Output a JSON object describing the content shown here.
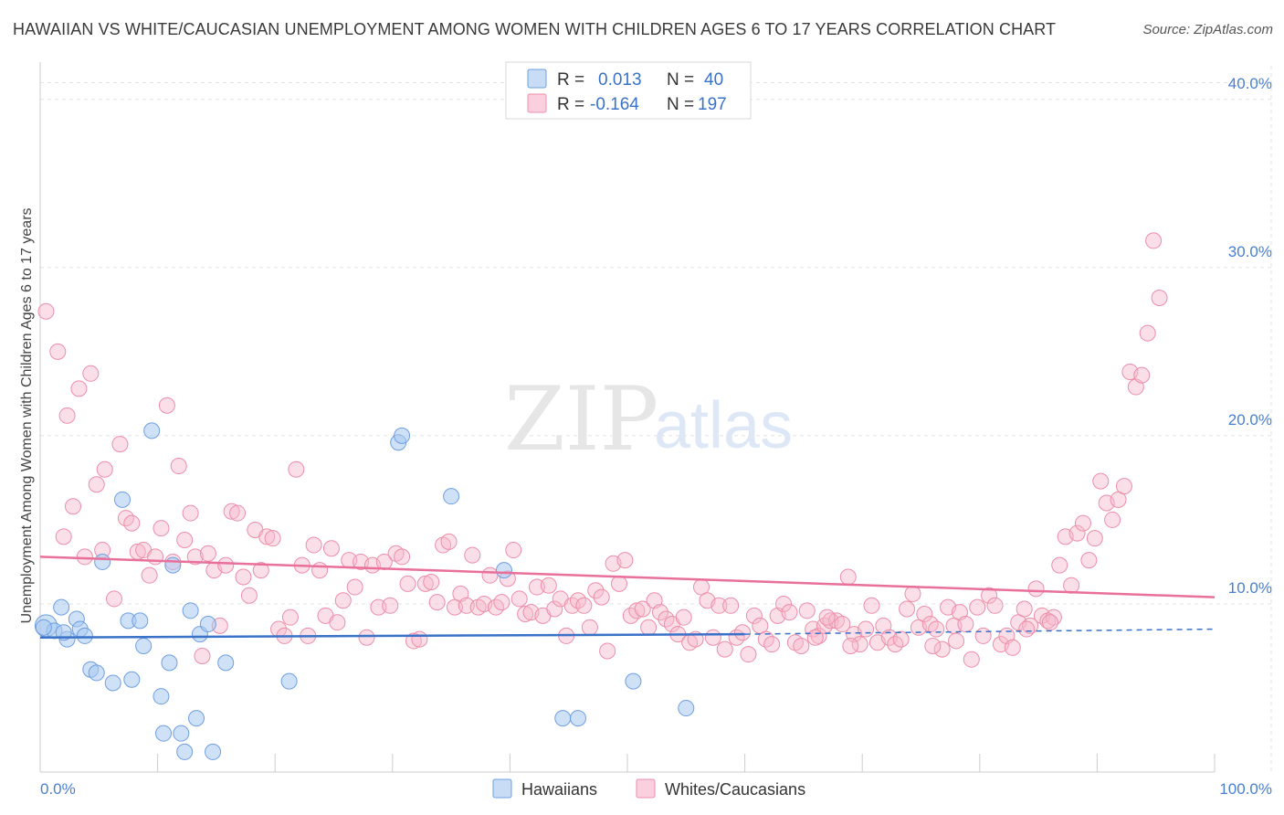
{
  "title": "HAWAIIAN VS WHITE/CAUCASIAN UNEMPLOYMENT AMONG WOMEN WITH CHILDREN AGES 6 TO 17 YEARS CORRELATION CHART",
  "source": "Source: ZipAtlas.com",
  "watermark": {
    "zip": "ZIP",
    "atlas": "atlas"
  },
  "legend_top": {
    "r_label": "R =",
    "n_label": "N =",
    "rows": [
      {
        "r": "0.013",
        "n": "40",
        "color": "#a8c8f0"
      },
      {
        "r": "-0.164",
        "n": "197",
        "color": "#f7b8cc"
      }
    ]
  },
  "legend_bottom": [
    {
      "label": "Hawaiians",
      "color": "#a8c8f0"
    },
    {
      "label": "Whites/Caucasians",
      "color": "#f7b8cc"
    }
  ],
  "chart_data": {
    "type": "scatter",
    "title": "HAWAIIAN VS WHITE/CAUCASIAN UNEMPLOYMENT AMONG WOMEN WITH CHILDREN AGES 6 TO 17 YEARS CORRELATION CHART",
    "xlabel": "",
    "ylabel": "Unemployment Among Women with Children Ages 6 to 17 years",
    "xlim": [
      0,
      100
    ],
    "ylim": [
      0,
      42
    ],
    "x_ticks": [
      "0.0%",
      "100.0%"
    ],
    "y_ticks": [
      {
        "value": 10,
        "label": "10.0%"
      },
      {
        "value": 20,
        "label": "20.0%"
      },
      {
        "value": 30,
        "label": "30.0%"
      },
      {
        "value": 40,
        "label": "40.0%"
      }
    ],
    "grid": true,
    "legend_position": "top-center",
    "series": [
      {
        "name": "Hawaiians",
        "color": "#a8c8f0",
        "stroke": "#6f9fe0",
        "trend": {
          "x": [
            0,
            60
          ],
          "y": [
            8.0,
            8.2
          ],
          "dashed_to": [
            100,
            8.5
          ],
          "color": "#3a72c8"
        },
        "points": [
          [
            0.5,
            8.7
          ],
          [
            1.2,
            8.4
          ],
          [
            1.8,
            9.8
          ],
          [
            2.3,
            7.9
          ],
          [
            3.1,
            9.1
          ],
          [
            3.4,
            8.5
          ],
          [
            3.8,
            8.1
          ],
          [
            4.3,
            6.1
          ],
          [
            4.8,
            5.9
          ],
          [
            5.3,
            12.5
          ],
          [
            6.2,
            5.3
          ],
          [
            7.0,
            16.2
          ],
          [
            7.5,
            9.0
          ],
          [
            7.8,
            5.5
          ],
          [
            8.5,
            9.0
          ],
          [
            8.8,
            7.5
          ],
          [
            9.5,
            20.3
          ],
          [
            10.3,
            4.5
          ],
          [
            10.5,
            2.3
          ],
          [
            11.0,
            6.5
          ],
          [
            11.3,
            12.3
          ],
          [
            12.0,
            2.3
          ],
          [
            12.3,
            1.2
          ],
          [
            12.8,
            9.6
          ],
          [
            13.3,
            3.2
          ],
          [
            13.6,
            8.2
          ],
          [
            14.3,
            8.8
          ],
          [
            14.7,
            1.2
          ],
          [
            15.8,
            6.5
          ],
          [
            21.2,
            5.4
          ],
          [
            30.5,
            19.6
          ],
          [
            30.8,
            20.0
          ],
          [
            35.0,
            16.4
          ],
          [
            39.5,
            12.0
          ],
          [
            44.5,
            3.2
          ],
          [
            45.8,
            3.2
          ],
          [
            50.5,
            5.4
          ],
          [
            55.0,
            3.8
          ],
          [
            0.3,
            8.6
          ],
          [
            2.0,
            8.3
          ]
        ]
      },
      {
        "name": "Whites/Caucasians",
        "color": "#f7b8cc",
        "stroke": "#ec8eaa",
        "trend": {
          "x": [
            0,
            100
          ],
          "y": [
            12.8,
            10.4
          ],
          "color": "#e8709a"
        },
        "points": [
          [
            0.5,
            27.4
          ],
          [
            1.5,
            25.0
          ],
          [
            2.0,
            14.0
          ],
          [
            2.3,
            21.2
          ],
          [
            2.8,
            15.8
          ],
          [
            3.3,
            22.8
          ],
          [
            3.8,
            12.8
          ],
          [
            4.3,
            23.7
          ],
          [
            4.8,
            17.1
          ],
          [
            5.3,
            13.2
          ],
          [
            5.5,
            18.0
          ],
          [
            6.3,
            10.3
          ],
          [
            6.8,
            19.5
          ],
          [
            7.3,
            15.1
          ],
          [
            7.8,
            14.8
          ],
          [
            8.3,
            13.1
          ],
          [
            8.8,
            13.2
          ],
          [
            9.3,
            11.7
          ],
          [
            9.8,
            12.8
          ],
          [
            10.3,
            14.5
          ],
          [
            10.8,
            21.8
          ],
          [
            11.3,
            12.5
          ],
          [
            11.8,
            18.2
          ],
          [
            12.3,
            13.8
          ],
          [
            12.8,
            15.4
          ],
          [
            13.2,
            12.8
          ],
          [
            13.8,
            6.9
          ],
          [
            14.3,
            13.0
          ],
          [
            14.8,
            12.0
          ],
          [
            15.3,
            8.7
          ],
          [
            15.8,
            12.3
          ],
          [
            16.3,
            15.5
          ],
          [
            16.8,
            15.4
          ],
          [
            17.3,
            11.6
          ],
          [
            17.8,
            10.5
          ],
          [
            18.3,
            14.4
          ],
          [
            18.8,
            12.0
          ],
          [
            19.3,
            14.0
          ],
          [
            19.8,
            13.9
          ],
          [
            20.3,
            8.5
          ],
          [
            20.8,
            8.1
          ],
          [
            21.3,
            9.2
          ],
          [
            21.8,
            18.0
          ],
          [
            22.3,
            12.3
          ],
          [
            22.8,
            8.1
          ],
          [
            23.3,
            13.5
          ],
          [
            23.8,
            12.0
          ],
          [
            24.3,
            9.3
          ],
          [
            24.8,
            13.3
          ],
          [
            25.3,
            8.9
          ],
          [
            25.8,
            10.2
          ],
          [
            26.3,
            12.6
          ],
          [
            26.8,
            11.0
          ],
          [
            27.3,
            12.5
          ],
          [
            27.8,
            8.0
          ],
          [
            28.3,
            12.3
          ],
          [
            28.8,
            9.8
          ],
          [
            29.3,
            12.5
          ],
          [
            29.8,
            9.9
          ],
          [
            30.3,
            13.0
          ],
          [
            30.8,
            12.8
          ],
          [
            31.3,
            11.2
          ],
          [
            31.8,
            7.8
          ],
          [
            32.3,
            7.9
          ],
          [
            32.8,
            11.2
          ],
          [
            33.3,
            11.3
          ],
          [
            33.8,
            10.1
          ],
          [
            34.3,
            13.5
          ],
          [
            34.8,
            13.7
          ],
          [
            35.3,
            9.8
          ],
          [
            35.8,
            10.6
          ],
          [
            36.3,
            9.9
          ],
          [
            36.8,
            12.9
          ],
          [
            37.3,
            9.8
          ],
          [
            37.8,
            10.0
          ],
          [
            38.3,
            11.7
          ],
          [
            38.8,
            9.8
          ],
          [
            39.3,
            10.1
          ],
          [
            39.8,
            11.5
          ],
          [
            40.3,
            13.2
          ],
          [
            40.8,
            10.3
          ],
          [
            41.3,
            9.4
          ],
          [
            41.8,
            9.5
          ],
          [
            42.3,
            11.0
          ],
          [
            42.8,
            9.3
          ],
          [
            43.3,
            11.1
          ],
          [
            43.8,
            9.7
          ],
          [
            44.3,
            10.3
          ],
          [
            44.8,
            8.1
          ],
          [
            45.3,
            9.9
          ],
          [
            45.8,
            10.2
          ],
          [
            46.3,
            9.9
          ],
          [
            46.8,
            8.6
          ],
          [
            47.3,
            10.8
          ],
          [
            47.8,
            10.4
          ],
          [
            48.3,
            7.2
          ],
          [
            48.8,
            12.4
          ],
          [
            49.3,
            11.2
          ],
          [
            49.8,
            12.6
          ],
          [
            50.3,
            9.3
          ],
          [
            50.8,
            9.6
          ],
          [
            51.3,
            9.7
          ],
          [
            51.8,
            8.6
          ],
          [
            52.3,
            10.2
          ],
          [
            52.8,
            9.5
          ],
          [
            53.3,
            9.1
          ],
          [
            53.8,
            8.8
          ],
          [
            54.3,
            8.2
          ],
          [
            54.8,
            9.2
          ],
          [
            55.3,
            7.7
          ],
          [
            55.8,
            7.9
          ],
          [
            56.3,
            11.0
          ],
          [
            56.8,
            10.2
          ],
          [
            57.3,
            8.0
          ],
          [
            57.8,
            9.9
          ],
          [
            58.3,
            7.3
          ],
          [
            58.8,
            9.9
          ],
          [
            59.3,
            8.0
          ],
          [
            59.8,
            8.3
          ],
          [
            60.3,
            7.0
          ],
          [
            60.8,
            9.3
          ],
          [
            61.3,
            8.7
          ],
          [
            61.8,
            7.9
          ],
          [
            62.3,
            7.6
          ],
          [
            62.8,
            9.3
          ],
          [
            63.3,
            10.0
          ],
          [
            63.8,
            9.5
          ],
          [
            64.3,
            7.7
          ],
          [
            64.8,
            7.5
          ],
          [
            65.3,
            9.6
          ],
          [
            65.8,
            8.5
          ],
          [
            66.3,
            8.1
          ],
          [
            66.8,
            8.7
          ],
          [
            67.3,
            9.0
          ],
          [
            67.8,
            9.0
          ],
          [
            68.3,
            8.8
          ],
          [
            68.8,
            11.6
          ],
          [
            69.3,
            8.2
          ],
          [
            69.8,
            7.6
          ],
          [
            70.3,
            8.5
          ],
          [
            70.8,
            9.9
          ],
          [
            71.3,
            7.7
          ],
          [
            71.8,
            8.7
          ],
          [
            72.3,
            8.0
          ],
          [
            72.8,
            7.6
          ],
          [
            73.3,
            7.9
          ],
          [
            73.8,
            9.7
          ],
          [
            74.3,
            10.6
          ],
          [
            74.8,
            8.6
          ],
          [
            75.3,
            9.4
          ],
          [
            75.8,
            8.8
          ],
          [
            76.3,
            8.5
          ],
          [
            76.8,
            7.3
          ],
          [
            77.3,
            9.8
          ],
          [
            77.8,
            8.7
          ],
          [
            78.3,
            9.5
          ],
          [
            78.8,
            8.8
          ],
          [
            79.3,
            6.7
          ],
          [
            79.8,
            9.8
          ],
          [
            80.3,
            8.1
          ],
          [
            80.8,
            10.5
          ],
          [
            81.3,
            9.9
          ],
          [
            81.8,
            7.6
          ],
          [
            82.3,
            8.1
          ],
          [
            82.8,
            7.4
          ],
          [
            83.3,
            8.9
          ],
          [
            83.8,
            9.7
          ],
          [
            84.3,
            8.7
          ],
          [
            84.8,
            10.9
          ],
          [
            85.3,
            9.3
          ],
          [
            85.8,
            9.0
          ],
          [
            86.3,
            9.2
          ],
          [
            86.8,
            12.3
          ],
          [
            87.3,
            14.0
          ],
          [
            87.8,
            11.1
          ],
          [
            88.3,
            14.2
          ],
          [
            88.8,
            14.8
          ],
          [
            89.3,
            12.6
          ],
          [
            89.8,
            13.9
          ],
          [
            90.3,
            17.3
          ],
          [
            90.8,
            16.0
          ],
          [
            91.3,
            15.0
          ],
          [
            91.8,
            16.2
          ],
          [
            92.3,
            17.0
          ],
          [
            92.8,
            23.8
          ],
          [
            93.3,
            22.9
          ],
          [
            93.8,
            23.6
          ],
          [
            94.3,
            26.1
          ],
          [
            94.8,
            31.6
          ],
          [
            95.3,
            28.2
          ],
          [
            86.0,
            8.9
          ],
          [
            84.0,
            8.5
          ],
          [
            78.0,
            7.8
          ],
          [
            76.0,
            7.5
          ],
          [
            69.0,
            7.5
          ],
          [
            67.0,
            9.2
          ],
          [
            66.0,
            8.0
          ]
        ]
      }
    ]
  }
}
